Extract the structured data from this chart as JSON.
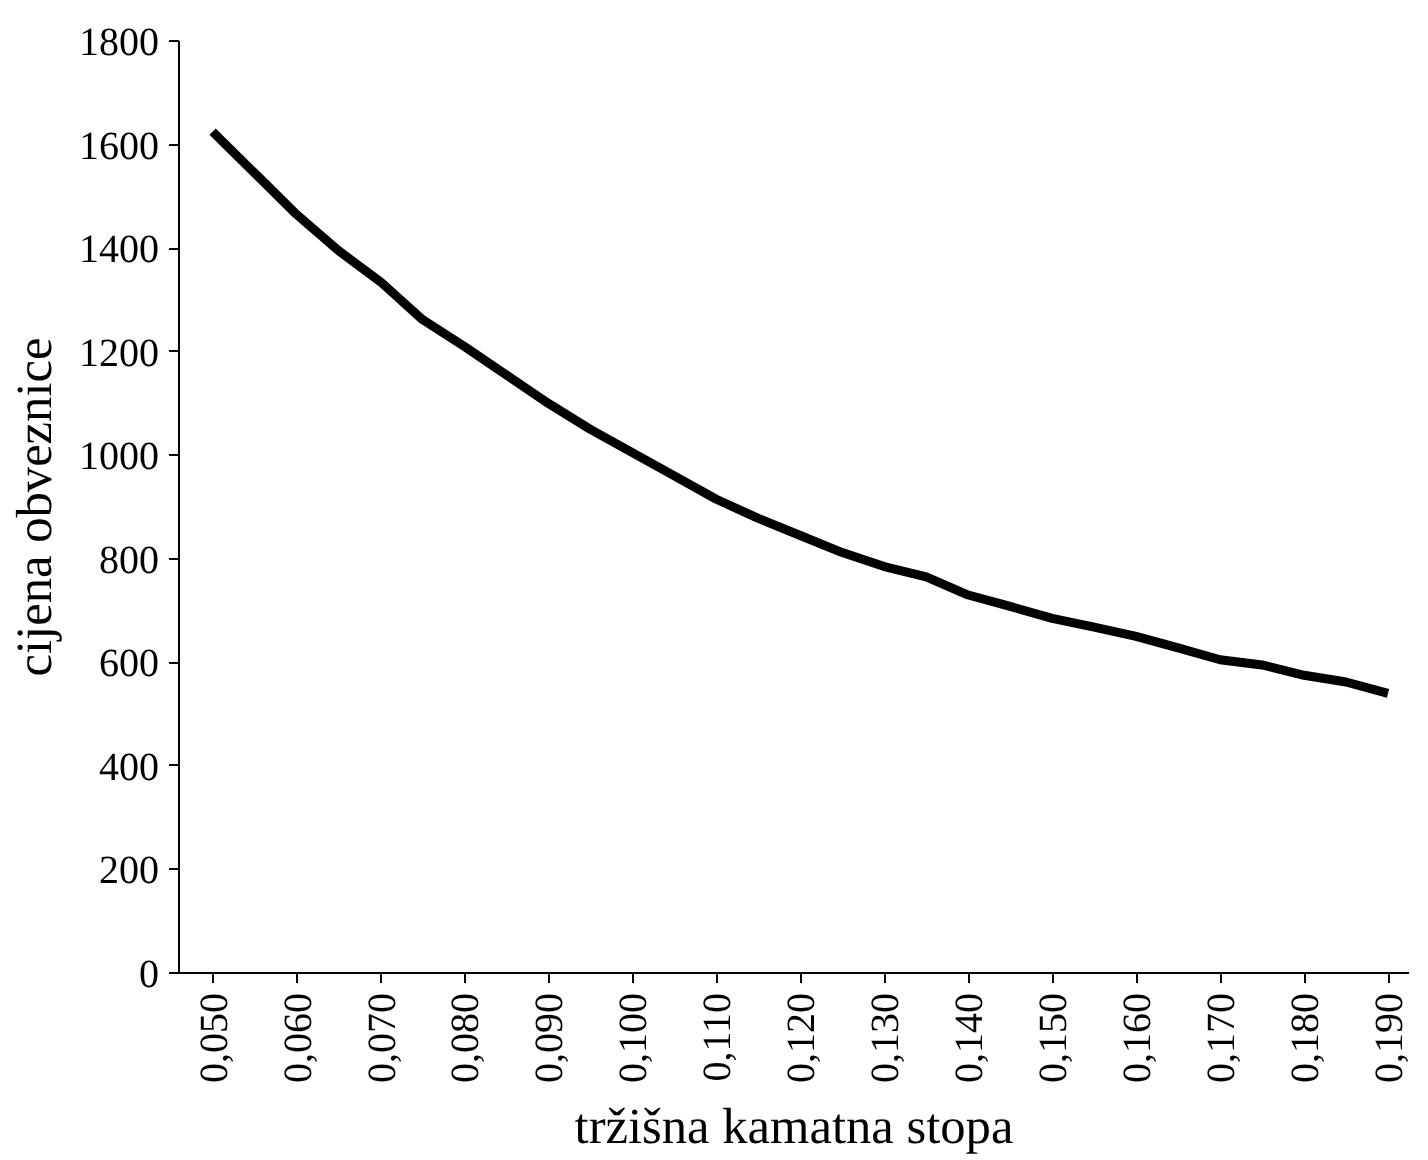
{
  "chart_data": {
    "type": "line",
    "xlabel": "tržišna kamatna stopa",
    "ylabel": "cijena obveznice",
    "x": [
      0.05,
      0.055,
      0.06,
      0.065,
      0.07,
      0.075,
      0.08,
      0.085,
      0.09,
      0.095,
      0.1,
      0.105,
      0.11,
      0.115,
      0.12,
      0.125,
      0.13,
      0.135,
      0.14,
      0.145,
      0.15,
      0.155,
      0.16,
      0.165,
      0.17,
      0.175,
      0.18,
      0.185,
      0.19
    ],
    "series": [
      {
        "color": "#000000",
        "values": [
          1625,
          1545,
          1465,
          1395,
          1335,
          1262,
          1210,
          1155,
          1100,
          1050,
          1005,
          960,
          915,
          878,
          845,
          812,
          785,
          765,
          730,
          708,
          685,
          668,
          650,
          628,
          605,
          595,
          575,
          562,
          540
        ]
      }
    ],
    "xlim": [
      0.046,
      0.1925
    ],
    "xticks": [
      {
        "value": 0.05,
        "label": "0,050"
      },
      {
        "value": 0.06,
        "label": "0,060"
      },
      {
        "value": 0.07,
        "label": "0,070"
      },
      {
        "value": 0.08,
        "label": "0,080"
      },
      {
        "value": 0.09,
        "label": "0,090"
      },
      {
        "value": 0.1,
        "label": "0,100"
      },
      {
        "value": 0.11,
        "label": "0,110"
      },
      {
        "value": 0.12,
        "label": "0,120"
      },
      {
        "value": 0.13,
        "label": "0,130"
      },
      {
        "value": 0.14,
        "label": "0,140"
      },
      {
        "value": 0.15,
        "label": "0,150"
      },
      {
        "value": 0.16,
        "label": "0,160"
      },
      {
        "value": 0.17,
        "label": "0,170"
      },
      {
        "value": 0.18,
        "label": "0,180"
      },
      {
        "value": 0.19,
        "label": "0,190"
      }
    ],
    "ylim": [
      0,
      1800
    ],
    "yticks": [
      0,
      200,
      400,
      600,
      800,
      1000,
      1200,
      1400,
      1600,
      1800
    ],
    "grid": false,
    "marker": "none",
    "line_style": "solid"
  }
}
